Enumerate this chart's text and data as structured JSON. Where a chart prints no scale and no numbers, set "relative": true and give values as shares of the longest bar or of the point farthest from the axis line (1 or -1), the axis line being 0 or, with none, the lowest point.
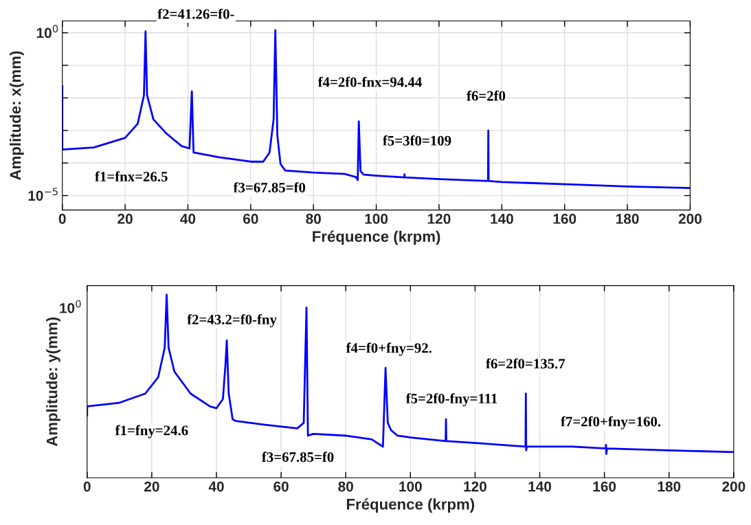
{
  "chart_data": [
    {
      "type": "line",
      "xlabel": "Fréquence (krpm)",
      "ylabel": "Amplitude: x(mm)",
      "log": "y",
      "grid": true,
      "xlim": [
        0,
        200
      ],
      "xticks": [
        0,
        20,
        40,
        60,
        80,
        100,
        120,
        140,
        160,
        180,
        200
      ],
      "ylim": [
        3.6e-06,
        2.3
      ],
      "yticks": [
        {
          "value": 1,
          "label": "10$^{0}$"
        },
        {
          "value": 0.1,
          "label": null
        },
        {
          "value": 0.01,
          "label": null
        },
        {
          "value": 0.001,
          "label": null
        },
        {
          "value": 0.0001,
          "label": null
        },
        {
          "value": 1e-05,
          "label": "10$^{−5}$"
        }
      ],
      "series": [
        {
          "color": "#0000ff",
          "x": [
            0,
            0,
            10,
            20,
            24,
            26,
            26.5,
            27,
            29,
            33,
            38,
            40.5,
            41.26,
            41.8,
            50,
            60,
            64,
            66,
            67.3,
            67.85,
            68.5,
            69.5,
            71,
            80,
            90,
            93.5,
            94.1,
            94.44,
            95,
            96,
            100,
            108.9,
            109,
            109.1,
            120,
            135.6,
            135.7,
            135.8,
            140,
            162,
            180,
            200
          ],
          "values": [
            0.023,
            0.00026,
            0.0003,
            0.00059,
            0.0016,
            0.012,
            1.1,
            0.012,
            0.0022,
            0.00083,
            0.00033,
            0.00028,
            0.016,
            0.00021,
            0.00015,
            0.00011,
            0.00011,
            0.00021,
            0.0022,
            1.2,
            0.00069,
            9.3e-05,
            5.9e-05,
            5.1e-05,
            4.6e-05,
            3.7e-05,
            3e-05,
            0.0019,
            5.6e-05,
            4.4e-05,
            4.1e-05,
            3.6e-05,
            4.5e-05,
            3.6e-05,
            3.2e-05,
            2.8e-05,
            0.001,
            2.8e-05,
            2.6e-05,
            2.2e-05,
            1.9e-05,
            1.7e-05
          ]
        }
      ],
      "annotations": [
        "f1=fnx=26.5",
        "f2=41.26=f0-",
        "f3=67.85=f0",
        "f4=2f0-fnx=94.44",
        "f5=3f0=109",
        "f6=2f0"
      ]
    },
    {
      "type": "line",
      "xlabel": "Fréquence (krpm)",
      "ylabel": "Amplitude: y(mm)",
      "relative": true,
      "grid": true,
      "xlim": [
        0,
        200
      ],
      "xticks": [
        0,
        20,
        40,
        60,
        80,
        100,
        120,
        140,
        160,
        180,
        200
      ],
      "series": [
        {
          "color": "#0000ff",
          "x": [
            0,
            0,
            10,
            18,
            22,
            24,
            24.6,
            25.2,
            27,
            32,
            38,
            40,
            42,
            42.8,
            43.2,
            43.8,
            45,
            46,
            55,
            65,
            67,
            67.85,
            68.3,
            70,
            80,
            88,
            91.5,
            92.3,
            93,
            94,
            96,
            100,
            110.9,
            111,
            111.1,
            120,
            135.6,
            135.7,
            135.8,
            136,
            150,
            160.4,
            160.5,
            160.6,
            160.8,
            180,
            200
          ],
          "values": [
            0.34,
            0.39,
            0.41,
            0.46,
            0.55,
            0.71,
            1.0,
            0.71,
            0.58,
            0.46,
            0.39,
            0.38,
            0.43,
            0.62,
            0.75,
            0.46,
            0.32,
            0.31,
            0.29,
            0.27,
            0.3,
            0.93,
            0.23,
            0.24,
            0.23,
            0.21,
            0.17,
            0.6,
            0.3,
            0.26,
            0.23,
            0.22,
            0.2,
            0.32,
            0.2,
            0.19,
            0.17,
            0.46,
            0.15,
            0.17,
            0.17,
            0.16,
            0.18,
            0.13,
            0.16,
            0.15,
            0.14
          ]
        }
      ],
      "annotations": [
        "10$^{0}$",
        "f1=fny=24.6",
        "f2=43.2=f0-fny",
        "f3=67.85=f0",
        "f4=f0+fny=92.",
        "f5=2f0-fny=111",
        "f6=2f0=135.7",
        "f7=2f0+fny=160."
      ]
    }
  ]
}
